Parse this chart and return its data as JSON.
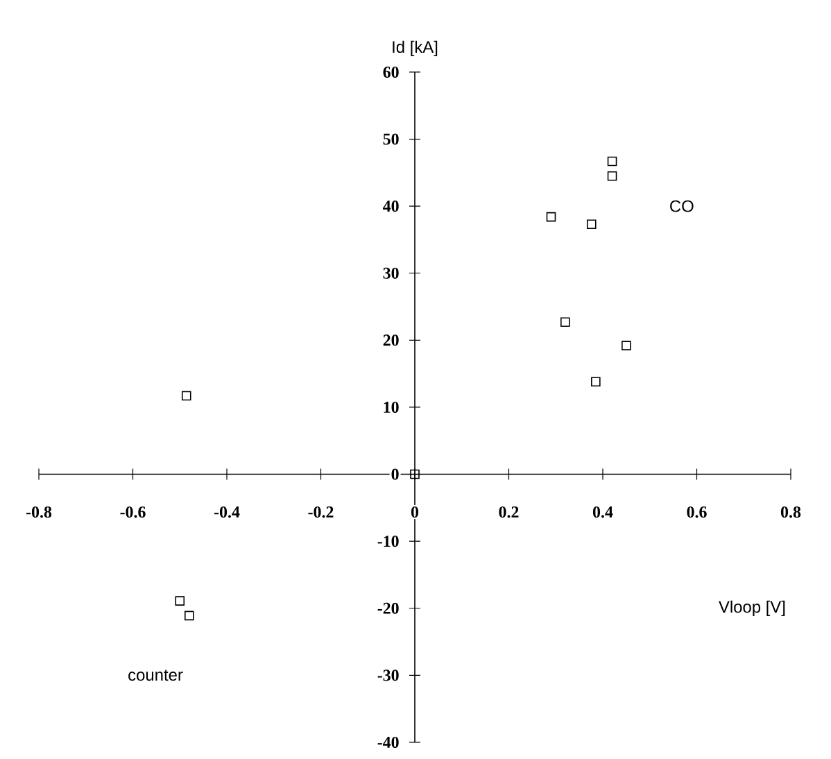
{
  "chart_data": {
    "type": "scatter",
    "xlabel": "Vloop [V]",
    "ylabel": "Id [kA]",
    "series": [
      {
        "color": "#000000",
        "x": [
          0.29,
          0.376,
          0.42,
          0.42,
          0.32,
          0.45,
          0.385,
          -0.486,
          -0.5,
          -0.48,
          0
        ],
        "values": [
          38.4,
          37.3,
          46.7,
          44.5,
          22.7,
          19.2,
          13.8,
          11.7,
          -18.9,
          -21.1,
          0
        ]
      }
    ],
    "marker": "square",
    "xlim": [
      -0.8,
      0.8
    ],
    "ylim": [
      -40,
      60
    ],
    "xticks": [
      -0.8,
      -0.6,
      -0.4,
      -0.2,
      0,
      0.2,
      0.4,
      0.6,
      0.8
    ],
    "yticks": [
      -40,
      -30,
      -20,
      -10,
      0,
      10,
      20,
      30,
      40,
      50,
      60
    ],
    "annotations": [
      "CO",
      "counter"
    ],
    "grid": false
  }
}
